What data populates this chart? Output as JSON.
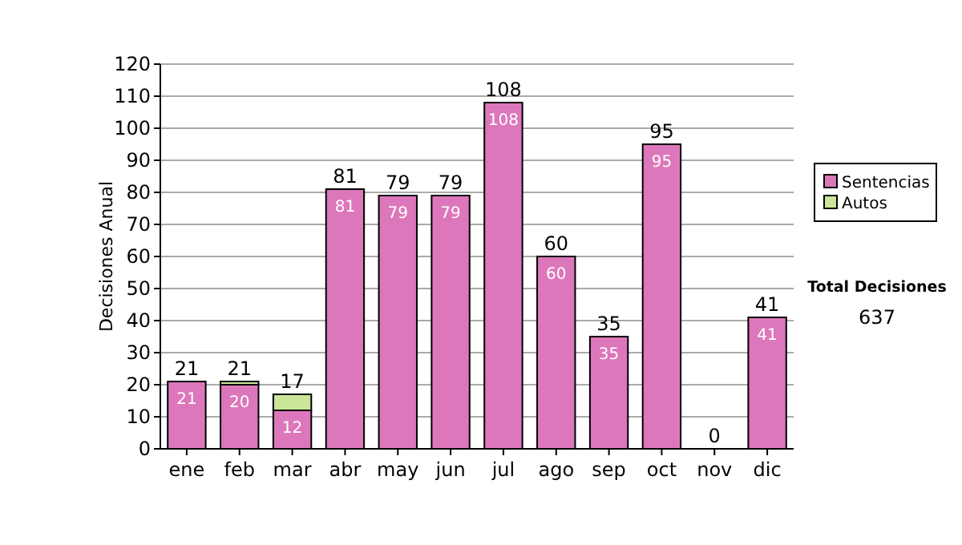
{
  "chart_data": {
    "type": "bar",
    "stacked": true,
    "ylabel": "Decisiones Anual",
    "categories": [
      "ene",
      "feb",
      "mar",
      "abr",
      "may",
      "jun",
      "jul",
      "ago",
      "sep",
      "oct",
      "nov",
      "dic"
    ],
    "series": [
      {
        "name": "Sentencias",
        "color": "#dd77bb",
        "values": [
          21,
          20,
          12,
          81,
          79,
          79,
          108,
          60,
          35,
          95,
          0,
          41
        ],
        "value_labels": [
          "21",
          "20",
          "12",
          "81",
          "79",
          "79",
          "108",
          "60",
          "35",
          "95",
          null,
          "41"
        ]
      },
      {
        "name": "Autos",
        "color": "#cce699",
        "values": [
          0,
          1,
          5,
          0,
          0,
          0,
          0,
          0,
          0,
          0,
          0,
          0
        ]
      }
    ],
    "totals": [
      "21",
      "21",
      "17",
      "81",
      "79",
      "79",
      "108",
      "60",
      "35",
      "95",
      "0",
      "41"
    ],
    "ylim": [
      0,
      120
    ],
    "yticks": [
      0,
      10,
      20,
      30,
      40,
      50,
      60,
      70,
      80,
      90,
      100,
      110,
      120
    ],
    "grid": "y",
    "legend": "right",
    "annotations": [
      "Total Decisiones",
      "637"
    ]
  }
}
